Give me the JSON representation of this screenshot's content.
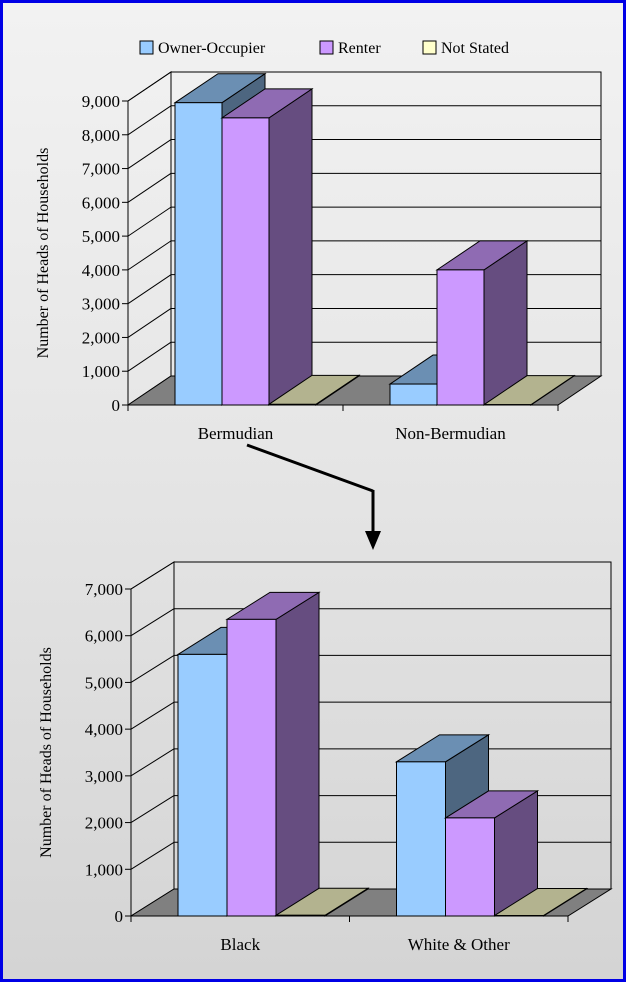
{
  "colors": {
    "border": "#0000e6",
    "owner_occupier": "#99ccff",
    "renter": "#cc99ff",
    "not_stated": "#ffffcc",
    "floor": "#808080"
  },
  "legend": [
    "Owner-Occupier",
    "Renter",
    "Not Stated"
  ],
  "chart_data": [
    {
      "type": "bar",
      "ylabel": "Number of Heads of Households",
      "ylim": [
        0,
        9000
      ],
      "yticks": [
        "0",
        "1,000",
        "2,000",
        "3,000",
        "4,000",
        "5,000",
        "6,000",
        "7,000",
        "8,000",
        "9,000"
      ],
      "categories": [
        "Bermudian",
        "Non-Bermudian"
      ],
      "series": [
        {
          "name": "Owner-Occupier",
          "values": [
            8950,
            620
          ]
        },
        {
          "name": "Renter",
          "values": [
            8500,
            4000
          ]
        },
        {
          "name": "Not Stated",
          "values": [
            20,
            10
          ]
        }
      ],
      "grid": true,
      "legend_position": "top"
    },
    {
      "type": "bar",
      "ylabel": "Number of Heads of Households",
      "ylim": [
        0,
        7000
      ],
      "yticks": [
        "0",
        "1,000",
        "2,000",
        "3,000",
        "4,000",
        "5,000",
        "6,000",
        "7,000"
      ],
      "categories": [
        "Black",
        "White & Other"
      ],
      "series": [
        {
          "name": "Owner-Occupier",
          "values": [
            5600,
            3300
          ]
        },
        {
          "name": "Renter",
          "values": [
            6350,
            2100
          ]
        },
        {
          "name": "Not Stated",
          "values": [
            15,
            10
          ]
        }
      ],
      "grid": true
    }
  ]
}
